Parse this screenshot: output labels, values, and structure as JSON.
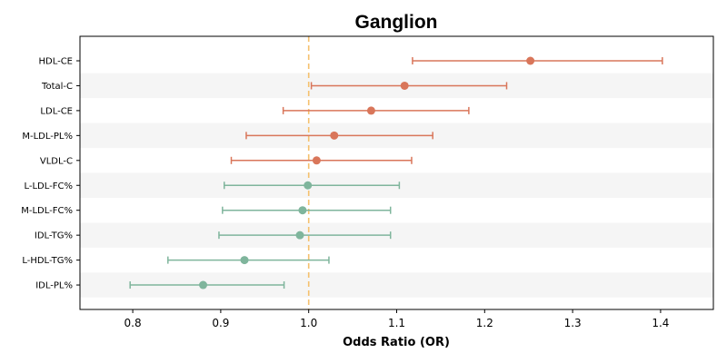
{
  "chart_data": {
    "type": "forest",
    "title": "Ganglion",
    "xlabel": "Odds Ratio (OR)",
    "ylabel": "",
    "xlim": [
      0.74,
      1.46
    ],
    "xticks": [
      0.8,
      0.9,
      1.0,
      1.1,
      1.2,
      1.3,
      1.4
    ],
    "xtick_labels": [
      "0.8",
      "0.9",
      "1.0",
      "1.1",
      "1.2",
      "1.3",
      "1.4"
    ],
    "reference_line": 1.0,
    "colors": {
      "positive": "#d9765a",
      "negative": "#7fb59c",
      "reference": "#f5c16e",
      "band": "#f5f5f5"
    },
    "rows": [
      {
        "label": "HDL-CE",
        "or": 1.252,
        "lower": 1.118,
        "upper": 1.402,
        "group": "positive"
      },
      {
        "label": "Total-C",
        "or": 1.109,
        "lower": 1.003,
        "upper": 1.225,
        "group": "positive"
      },
      {
        "label": "LDL-CE",
        "or": 1.071,
        "lower": 0.971,
        "upper": 1.182,
        "group": "positive"
      },
      {
        "label": "M-LDL-PL%",
        "or": 1.029,
        "lower": 0.929,
        "upper": 1.141,
        "group": "positive"
      },
      {
        "label": "VLDL-C",
        "or": 1.009,
        "lower": 0.912,
        "upper": 1.117,
        "group": "positive"
      },
      {
        "label": "L-LDL-FC%",
        "or": 0.999,
        "lower": 0.904,
        "upper": 1.103,
        "group": "negative"
      },
      {
        "label": "M-LDL-FC%",
        "or": 0.993,
        "lower": 0.902,
        "upper": 1.093,
        "group": "negative"
      },
      {
        "label": "IDL-TG%",
        "or": 0.99,
        "lower": 0.898,
        "upper": 1.093,
        "group": "negative"
      },
      {
        "label": "L-HDL-TG%",
        "or": 0.927,
        "lower": 0.84,
        "upper": 1.023,
        "group": "negative"
      },
      {
        "label": "IDL-PL%",
        "or": 0.88,
        "lower": 0.797,
        "upper": 0.972,
        "group": "negative"
      }
    ]
  }
}
